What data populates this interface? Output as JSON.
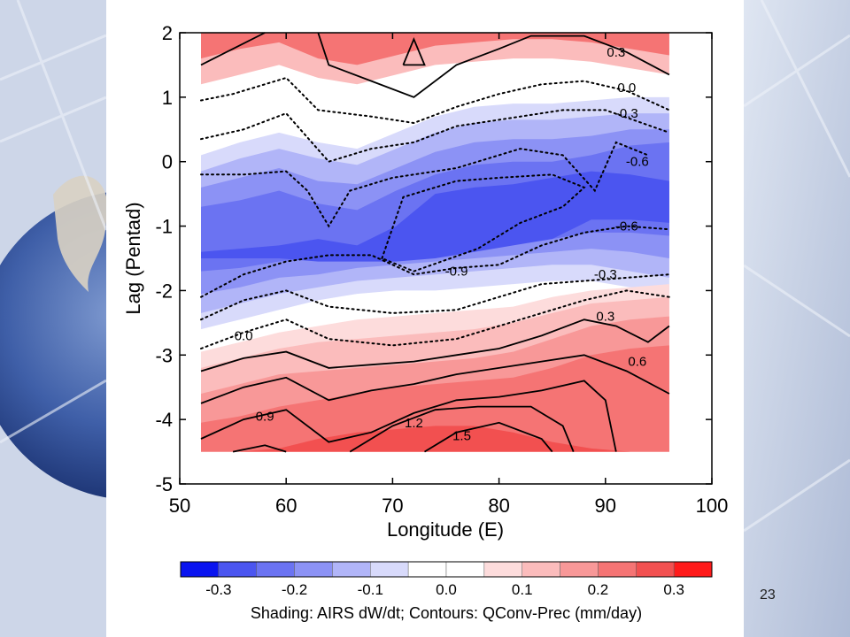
{
  "slide": {
    "number": "23"
  },
  "chart_data": {
    "type": "heatmap",
    "xlabel": "Longitude (E)",
    "ylabel": "Lag (Pentad)",
    "xlim": [
      50,
      100
    ],
    "ylim": [
      -5,
      2
    ],
    "x_ticks": [
      "50",
      "60",
      "70",
      "80",
      "90",
      "100"
    ],
    "y_ticks": [
      "2",
      "1",
      "0",
      "-1",
      "-2",
      "-3",
      "-4",
      "-5"
    ],
    "grid": false,
    "data_extent": {
      "x": [
        52,
        96
      ],
      "y": [
        -4.5,
        2
      ]
    },
    "shading_field": "AIRS dW/dt",
    "contour_field": "QConv-Prec (mm/day)",
    "colorbar": {
      "ticks": [
        "-0.3",
        "-0.2",
        "-0.1",
        "0.0",
        "0.1",
        "0.2",
        "0.3"
      ],
      "levels": [
        -0.35,
        -0.3,
        -0.25,
        -0.2,
        -0.15,
        -0.1,
        -0.05,
        0.0,
        0.05,
        0.1,
        0.15,
        0.2,
        0.25,
        0.3,
        0.35
      ],
      "colors": [
        "#0a14f0",
        "#4b55f0",
        "#6b73f2",
        "#8c92f5",
        "#b1b5f8",
        "#d8dafb",
        "#ffffff",
        "#ffffff",
        "#fddcdc",
        "#fbbcbc",
        "#f89898",
        "#f57474",
        "#f25050",
        "#ff1a1a"
      ],
      "caption": "Shading: AIRS dW/dt; Contours: QConv-Prec (mm/day)"
    },
    "shading_bands": [
      {
        "value": 0.12,
        "color": "#fbbcbc",
        "y_top": [
          2,
          2,
          2,
          2,
          2,
          2,
          2,
          2,
          2,
          2,
          2,
          2,
          2
        ],
        "y_bot": [
          1.2,
          1.35,
          1.5,
          1.3,
          1.2,
          1.35,
          1.5,
          1.55,
          1.6,
          1.6,
          1.55,
          1.45,
          1.35
        ]
      },
      {
        "value": 0.22,
        "color": "#f57474",
        "y_top": [
          2,
          2,
          2,
          2,
          2,
          2,
          2,
          2,
          2,
          2,
          2,
          2,
          2
        ],
        "y_bot": [
          1.6,
          1.75,
          1.85,
          1.6,
          1.5,
          1.65,
          1.8,
          1.85,
          1.9,
          1.9,
          1.85,
          1.75,
          1.65
        ]
      },
      {
        "value": -0.08,
        "color": "#d8dafb",
        "y_top": [
          0.1,
          0.3,
          0.45,
          0.3,
          0.2,
          0.45,
          0.7,
          0.85,
          0.9,
          0.9,
          0.95,
          1.0,
          1.0
        ],
        "y_bot": [
          -2.6,
          -2.45,
          -2.3,
          -2.15,
          -2.05,
          -2.0,
          -2.0,
          -1.95,
          -1.9,
          -1.85,
          -1.85,
          -1.95,
          -2.05
        ]
      },
      {
        "value": -0.15,
        "color": "#b1b5f8",
        "y_top": [
          -0.15,
          0.05,
          0.2,
          0.05,
          -0.05,
          0.2,
          0.45,
          0.6,
          0.65,
          0.65,
          0.7,
          0.75,
          0.75
        ],
        "y_bot": [
          -2.35,
          -2.2,
          -2.05,
          -1.95,
          -1.85,
          -1.8,
          -1.75,
          -1.7,
          -1.65,
          -1.6,
          -1.6,
          -1.7,
          -1.8
        ]
      },
      {
        "value": -0.22,
        "color": "#8c92f5",
        "y_top": [
          -0.4,
          -0.25,
          -0.1,
          -0.3,
          -0.35,
          -0.1,
          0.15,
          0.3,
          0.35,
          0.35,
          0.4,
          0.5,
          0.5
        ],
        "y_bot": [
          -2.05,
          -1.95,
          -1.8,
          -1.75,
          -1.65,
          -1.6,
          -1.55,
          -1.5,
          -1.45,
          -1.4,
          -1.35,
          -1.4,
          -1.5
        ]
      },
      {
        "value": -0.28,
        "color": "#6b73f2",
        "y_top": [
          -0.7,
          -0.6,
          -0.45,
          -0.65,
          -0.75,
          -0.45,
          -0.2,
          -0.05,
          0.0,
          0.0,
          0.1,
          0.25,
          0.3
        ],
        "y_bot": [
          -1.7,
          -1.65,
          -1.55,
          -1.5,
          -1.45,
          -1.4,
          -1.35,
          -1.3,
          -1.25,
          -1.2,
          -1.1,
          -1.1,
          -1.15
        ]
      },
      {
        "value": -0.34,
        "color": "#4b55f0",
        "y_top": [
          -1.4,
          -1.35,
          -1.3,
          -1.2,
          -1.3,
          -1.0,
          -0.5,
          -0.4,
          -0.35,
          -0.25,
          -0.15,
          -0.2,
          -0.3
        ],
        "y_bot": [
          -1.5,
          -1.5,
          -1.5,
          -1.55,
          -1.55,
          -1.55,
          -1.5,
          -1.4,
          -1.3,
          -1.2,
          -0.9,
          -0.9,
          -0.95
        ]
      },
      {
        "value": 0.06,
        "color": "#fddcdc",
        "y_top": [
          -2.95,
          -2.8,
          -2.65,
          -2.55,
          -2.45,
          -2.4,
          -2.35,
          -2.3,
          -2.25,
          -2.1,
          -2.0,
          -1.95,
          -1.9
        ],
        "y_bot": [
          -4.5,
          -4.5,
          -4.5,
          -4.5,
          -4.5,
          -4.5,
          -4.5,
          -4.5,
          -4.5,
          -4.5,
          -4.5,
          -4.5,
          -4.5
        ]
      },
      {
        "value": 0.12,
        "color": "#fbbcbc",
        "y_top": [
          -3.2,
          -3.05,
          -2.9,
          -2.8,
          -2.75,
          -2.7,
          -2.65,
          -2.6,
          -2.5,
          -2.35,
          -2.2,
          -2.15,
          -2.1
        ],
        "y_bot": [
          -4.5,
          -4.5,
          -4.5,
          -4.5,
          -4.5,
          -4.5,
          -4.5,
          -4.5,
          -4.5,
          -4.5,
          -4.5,
          -4.5,
          -4.5
        ]
      },
      {
        "value": 0.17,
        "color": "#f89898",
        "y_top": [
          -3.6,
          -3.45,
          -3.3,
          -3.25,
          -3.2,
          -3.15,
          -3.1,
          -3.05,
          -2.95,
          -2.75,
          -2.55,
          -2.45,
          -2.4
        ],
        "y_bot": [
          -4.5,
          -4.5,
          -4.5,
          -4.5,
          -4.5,
          -4.5,
          -4.5,
          -4.5,
          -4.5,
          -4.5,
          -4.5,
          -4.5,
          -4.5
        ]
      },
      {
        "value": 0.22,
        "color": "#f57474",
        "y_top": [
          -4.05,
          -3.95,
          -3.8,
          -3.7,
          -3.6,
          -3.5,
          -3.45,
          -3.4,
          -3.35,
          -3.2,
          -3.0,
          -2.9,
          -2.85
        ],
        "y_bot": [
          -4.5,
          -4.5,
          -4.5,
          -4.5,
          -4.5,
          -4.5,
          -4.5,
          -4.5,
          -4.5,
          -4.5,
          -4.5,
          -4.5,
          -4.5
        ]
      },
      {
        "value": 0.27,
        "color": "#f25050",
        "y_top": [
          -4.5,
          -4.5,
          -4.45,
          -4.3,
          -4.2,
          -4.15,
          -4.1,
          -4.1,
          -4.2,
          -4.35,
          -4.45,
          -4.5,
          -4.5
        ],
        "y_bot": [
          -4.5,
          -4.5,
          -4.5,
          -4.5,
          -4.5,
          -4.5,
          -4.5,
          -4.5,
          -4.5,
          -4.5,
          -4.5,
          -4.5,
          -4.5
        ]
      }
    ],
    "contours": [
      {
        "label": "0.3",
        "dashed": false,
        "points": [
          [
            52,
            1.5
          ],
          [
            55,
            1.75
          ],
          [
            58,
            2.0
          ]
        ],
        "label_at": null
      },
      {
        "label": "0.3",
        "dashed": false,
        "points": [
          [
            63,
            2.0
          ],
          [
            64,
            1.5
          ],
          [
            68,
            1.25
          ],
          [
            72,
            1.0
          ],
          [
            76,
            1.5
          ],
          [
            80,
            1.75
          ],
          [
            83,
            1.95
          ],
          [
            88,
            1.95
          ],
          [
            92,
            1.7
          ],
          [
            96,
            1.35
          ]
        ],
        "label_at": [
          91,
          1.7
        ]
      },
      {
        "label": "0.0",
        "dashed": true,
        "points": [
          [
            52,
            0.95
          ],
          [
            55,
            1.05
          ],
          [
            60,
            1.3
          ],
          [
            63,
            0.8
          ],
          [
            68,
            0.7
          ],
          [
            72,
            0.6
          ],
          [
            76,
            0.85
          ],
          [
            80,
            1.05
          ],
          [
            84,
            1.2
          ],
          [
            88,
            1.25
          ],
          [
            92,
            1.1
          ],
          [
            96,
            0.8
          ]
        ],
        "label_at": [
          92,
          1.15
        ]
      },
      {
        "label": "-0.3",
        "dashed": true,
        "points": [
          [
            52,
            0.35
          ],
          [
            56,
            0.5
          ],
          [
            60,
            0.75
          ],
          [
            64,
            0.0
          ],
          [
            68,
            0.2
          ],
          [
            72,
            0.3
          ],
          [
            76,
            0.55
          ],
          [
            80,
            0.65
          ],
          [
            86,
            0.8
          ],
          [
            90,
            0.8
          ],
          [
            96,
            0.45
          ]
        ],
        "label_at": [
          92,
          0.75
        ]
      },
      {
        "label": "-0.6",
        "dashed": true,
        "points": [
          [
            52,
            -0.2
          ],
          [
            56,
            -0.2
          ],
          [
            60,
            -0.15
          ],
          [
            62,
            -0.45
          ],
          [
            64,
            -1.0
          ],
          [
            66,
            -0.45
          ],
          [
            70,
            -0.25
          ],
          [
            76,
            -0.1
          ],
          [
            82,
            0.2
          ],
          [
            86,
            0.1
          ],
          [
            89,
            -0.45
          ],
          [
            91,
            0.3
          ],
          [
            94,
            0.1
          ]
        ],
        "label_at": [
          93,
          0.0
        ]
      },
      {
        "label": "-0.9",
        "dashed": true,
        "points": [
          [
            69,
            -1.5
          ],
          [
            71,
            -0.55
          ],
          [
            76,
            -0.3
          ],
          [
            80,
            -0.25
          ],
          [
            85,
            -0.2
          ],
          [
            88,
            -0.4
          ],
          [
            86,
            -0.7
          ],
          [
            82,
            -0.95
          ],
          [
            78,
            -1.35
          ],
          [
            72,
            -1.7
          ],
          [
            69,
            -1.5
          ]
        ],
        "label_at": [
          76,
          -1.7
        ]
      },
      {
        "label": "-0.6",
        "dashed": true,
        "points": [
          [
            52,
            -2.1
          ],
          [
            56,
            -1.75
          ],
          [
            60,
            -1.55
          ],
          [
            64,
            -1.45
          ],
          [
            68,
            -1.45
          ],
          [
            72,
            -1.75
          ],
          [
            76,
            -1.65
          ],
          [
            80,
            -1.6
          ],
          [
            84,
            -1.3
          ],
          [
            88,
            -1.1
          ],
          [
            92,
            -1.0
          ],
          [
            96,
            -1.05
          ]
        ],
        "label_at": [
          92,
          -1.0
        ]
      },
      {
        "label": "-0.3",
        "dashed": true,
        "points": [
          [
            52,
            -2.45
          ],
          [
            56,
            -2.15
          ],
          [
            60,
            -2.0
          ],
          [
            64,
            -2.25
          ],
          [
            70,
            -2.35
          ],
          [
            76,
            -2.3
          ],
          [
            80,
            -2.1
          ],
          [
            84,
            -1.9
          ],
          [
            88,
            -1.85
          ],
          [
            92,
            -1.8
          ],
          [
            96,
            -1.75
          ]
        ],
        "label_at": [
          90,
          -1.75
        ]
      },
      {
        "label": "0.0",
        "dashed": true,
        "points": [
          [
            52,
            -2.9
          ],
          [
            56,
            -2.65
          ],
          [
            60,
            -2.45
          ],
          [
            64,
            -2.75
          ],
          [
            70,
            -2.85
          ],
          [
            76,
            -2.75
          ],
          [
            80,
            -2.55
          ],
          [
            84,
            -2.35
          ],
          [
            88,
            -2.15
          ],
          [
            92,
            -2.0
          ],
          [
            96,
            -2.1
          ]
        ],
        "label_at": [
          56,
          -2.7
        ]
      },
      {
        "label": "0.3",
        "dashed": false,
        "points": [
          [
            52,
            -3.25
          ],
          [
            56,
            -3.05
          ],
          [
            60,
            -2.95
          ],
          [
            64,
            -3.2
          ],
          [
            68,
            -3.15
          ],
          [
            72,
            -3.1
          ],
          [
            76,
            -3.0
          ],
          [
            80,
            -2.9
          ],
          [
            84,
            -2.7
          ],
          [
            88,
            -2.45
          ],
          [
            91,
            -2.55
          ],
          [
            94,
            -2.8
          ],
          [
            96,
            -2.55
          ]
        ],
        "label_at": [
          90,
          -2.4
        ]
      },
      {
        "label": "0.6",
        "dashed": false,
        "points": [
          [
            52,
            -3.75
          ],
          [
            56,
            -3.5
          ],
          [
            60,
            -3.35
          ],
          [
            64,
            -3.7
          ],
          [
            68,
            -3.55
          ],
          [
            72,
            -3.45
          ],
          [
            76,
            -3.3
          ],
          [
            80,
            -3.2
          ],
          [
            84,
            -3.1
          ],
          [
            88,
            -3.0
          ],
          [
            92,
            -3.25
          ],
          [
            96,
            -3.6
          ]
        ],
        "label_at": [
          93,
          -3.1
        ]
      },
      {
        "label": "0.9",
        "dashed": false,
        "points": [
          [
            52,
            -4.3
          ],
          [
            56,
            -4.0
          ],
          [
            60,
            -3.85
          ],
          [
            64,
            -4.35
          ],
          [
            68,
            -4.2
          ],
          [
            72,
            -3.9
          ],
          [
            76,
            -3.7
          ],
          [
            80,
            -3.65
          ],
          [
            84,
            -3.55
          ],
          [
            88,
            -3.4
          ],
          [
            90,
            -3.7
          ],
          [
            91,
            -4.5
          ]
        ],
        "label_at": [
          58,
          -3.95
        ]
      },
      {
        "label": "1.2",
        "dashed": false,
        "points": [
          [
            66,
            -4.5
          ],
          [
            70,
            -4.1
          ],
          [
            74,
            -3.85
          ],
          [
            78,
            -3.8
          ],
          [
            83,
            -3.8
          ],
          [
            86,
            -4.1
          ],
          [
            87,
            -4.5
          ]
        ],
        "label_at": [
          72,
          -4.05
        ]
      },
      {
        "label": "1.5",
        "dashed": false,
        "points": [
          [
            73,
            -4.5
          ],
          [
            76,
            -4.2
          ],
          [
            80,
            -4.05
          ],
          [
            84,
            -4.3
          ],
          [
            85,
            -4.5
          ]
        ],
        "label_at": [
          76.5,
          -4.25
        ]
      },
      {
        "label": "",
        "dashed": false,
        "points": [
          [
            71,
            1.5
          ],
          [
            72,
            1.9
          ],
          [
            73,
            1.5
          ],
          [
            71,
            1.5
          ]
        ],
        "label_at": null
      },
      {
        "label": "",
        "dashed": false,
        "points": [
          [
            55,
            -4.5
          ],
          [
            58,
            -4.4
          ],
          [
            60,
            -4.5
          ]
        ],
        "label_at": null
      }
    ]
  }
}
